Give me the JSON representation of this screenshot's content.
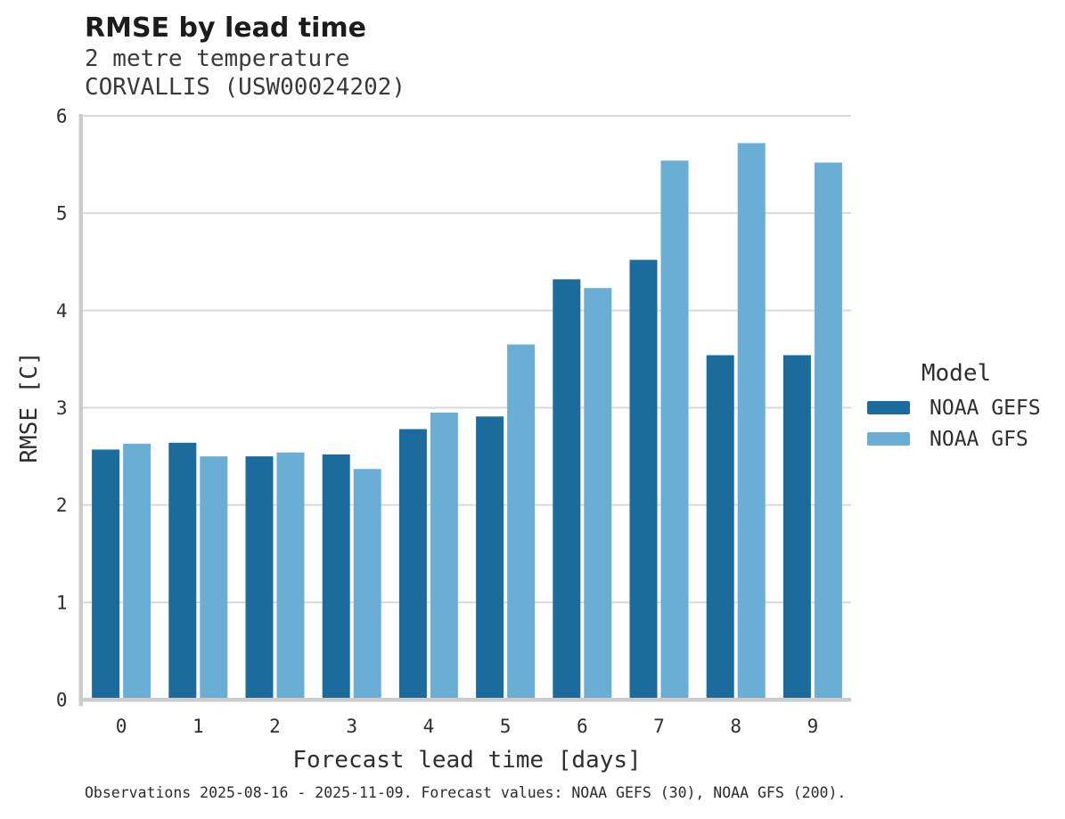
{
  "header": {
    "title": "RMSE by lead time",
    "subtitle1": "2 metre temperature",
    "subtitle2": "CORVALLIS (USW00024202)"
  },
  "legend": {
    "title": "Model"
  },
  "footer": {
    "caption": "Observations 2025-08-16 - 2025-11-09. Forecast values: NOAA GEFS (30), NOAA GFS (200)."
  },
  "colors": {
    "gefs_dark_blue": "#1b6c9d",
    "gfs_light_blue": "#6aaed6",
    "gridline": "#d9d9d9",
    "spine": "#cccccc",
    "tick_text": "#2e2e2e"
  },
  "chart_data": {
    "type": "bar",
    "title": "RMSE by lead time",
    "subtitle": [
      "2 metre temperature",
      "CORVALLIS (USW00024202)"
    ],
    "categories": [
      "0",
      "1",
      "2",
      "3",
      "4",
      "5",
      "6",
      "7",
      "8",
      "9"
    ],
    "series": [
      {
        "name": "NOAA GEFS",
        "color": "#1b6c9d",
        "values": [
          2.57,
          2.64,
          2.5,
          2.52,
          2.78,
          2.91,
          4.32,
          4.52,
          3.54,
          3.54
        ]
      },
      {
        "name": "NOAA GFS",
        "color": "#6aaed6",
        "values": [
          2.63,
          2.5,
          2.54,
          2.37,
          2.95,
          3.65,
          4.23,
          5.54,
          5.72,
          5.52
        ]
      }
    ],
    "xlabel": "Forecast lead time [days]",
    "ylabel": "RMSE [C]",
    "ylim": [
      0,
      6
    ],
    "yticks": [
      0,
      1,
      2,
      3,
      4,
      5,
      6
    ],
    "grid": "horizontal",
    "legend_title": "Model",
    "legend_position": "right",
    "caption": "Observations 2025-08-16 - 2025-11-09. Forecast values: NOAA GEFS (30), NOAA GFS (200)."
  }
}
